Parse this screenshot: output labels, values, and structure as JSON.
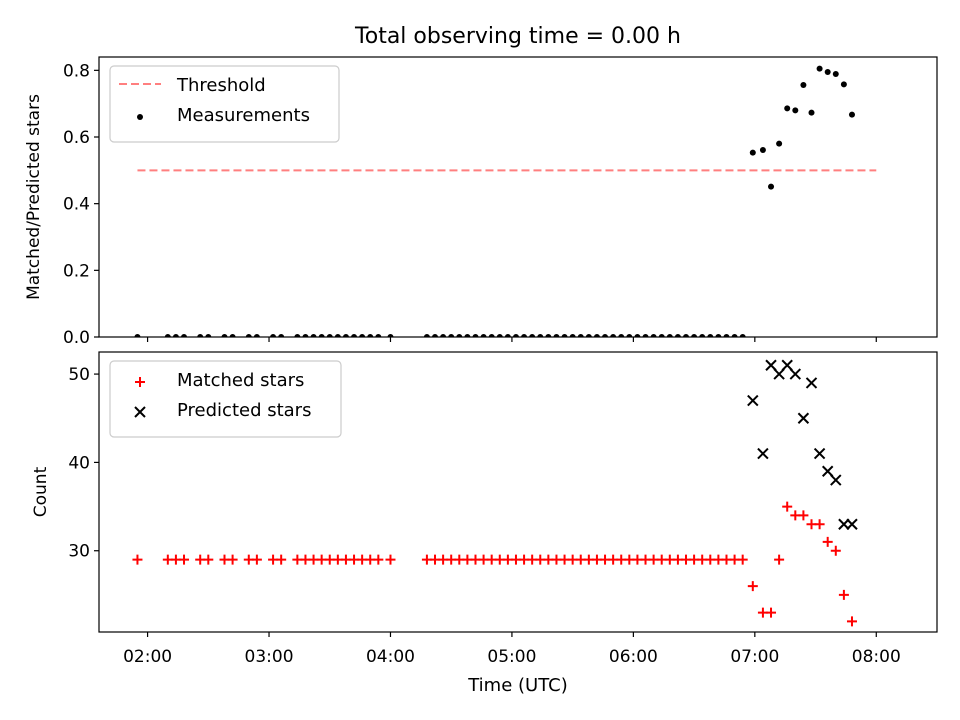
{
  "figure": {
    "title": "Total observing time = 0.00 h",
    "xlabel": "Time (UTC)",
    "xticks": [
      "02:00",
      "03:00",
      "04:00",
      "05:00",
      "06:00",
      "07:00",
      "08:00"
    ]
  },
  "chart_data": [
    {
      "type": "scatter",
      "panel": "top",
      "ylabel": "Matched/Predicted stars",
      "ylim": [
        0,
        0.84
      ],
      "yticks": [
        0.0,
        0.2,
        0.4,
        0.6,
        0.8
      ],
      "xlim": [
        "01:36",
        "08:30"
      ],
      "legend_position": "top-left",
      "threshold": {
        "name": "Threshold",
        "value": 0.5,
        "x": [
          "01:55",
          "08:00"
        ],
        "color": "#ff7f7f",
        "style": "dashed"
      },
      "series": [
        {
          "name": "Measurements",
          "color": "#000000",
          "marker": "dot",
          "points": [
            [
              "01:55",
              0
            ],
            [
              "02:10",
              0
            ],
            [
              "02:14",
              0
            ],
            [
              "02:18",
              0
            ],
            [
              "02:26",
              0
            ],
            [
              "02:30",
              0
            ],
            [
              "02:38",
              0
            ],
            [
              "02:42",
              0
            ],
            [
              "02:50",
              0
            ],
            [
              "02:54",
              0
            ],
            [
              "03:02",
              0
            ],
            [
              "03:06",
              0
            ],
            [
              "03:14",
              0
            ],
            [
              "03:18",
              0
            ],
            [
              "03:22",
              0
            ],
            [
              "03:26",
              0
            ],
            [
              "03:30",
              0
            ],
            [
              "03:34",
              0
            ],
            [
              "03:38",
              0
            ],
            [
              "03:42",
              0
            ],
            [
              "03:46",
              0
            ],
            [
              "03:50",
              0
            ],
            [
              "03:54",
              0
            ],
            [
              "04:00",
              0
            ],
            [
              "04:18",
              0
            ],
            [
              "04:22",
              0
            ],
            [
              "04:26",
              0
            ],
            [
              "04:30",
              0
            ],
            [
              "04:34",
              0
            ],
            [
              "04:38",
              0
            ],
            [
              "04:42",
              0
            ],
            [
              "04:46",
              0
            ],
            [
              "04:50",
              0
            ],
            [
              "04:54",
              0
            ],
            [
              "04:58",
              0
            ],
            [
              "05:02",
              0
            ],
            [
              "05:06",
              0
            ],
            [
              "05:10",
              0
            ],
            [
              "05:14",
              0
            ],
            [
              "05:18",
              0
            ],
            [
              "05:22",
              0
            ],
            [
              "05:26",
              0
            ],
            [
              "05:30",
              0
            ],
            [
              "05:34",
              0
            ],
            [
              "05:38",
              0
            ],
            [
              "05:42",
              0
            ],
            [
              "05:46",
              0
            ],
            [
              "05:50",
              0
            ],
            [
              "05:54",
              0
            ],
            [
              "05:58",
              0
            ],
            [
              "06:02",
              0
            ],
            [
              "06:06",
              0
            ],
            [
              "06:10",
              0
            ],
            [
              "06:14",
              0
            ],
            [
              "06:18",
              0
            ],
            [
              "06:22",
              0
            ],
            [
              "06:26",
              0
            ],
            [
              "06:30",
              0
            ],
            [
              "06:34",
              0
            ],
            [
              "06:38",
              0
            ],
            [
              "06:42",
              0
            ],
            [
              "06:46",
              0
            ],
            [
              "06:50",
              0
            ],
            [
              "06:54",
              0
            ],
            [
              "06:59",
              0.553
            ],
            [
              "07:04",
              0.561
            ],
            [
              "07:08",
              0.451
            ],
            [
              "07:12",
              0.58
            ],
            [
              "07:16",
              0.686
            ],
            [
              "07:20",
              0.68
            ],
            [
              "07:24",
              0.756
            ],
            [
              "07:28",
              0.673
            ],
            [
              "07:32",
              0.805
            ],
            [
              "07:36",
              0.795
            ],
            [
              "07:40",
              0.789
            ],
            [
              "07:44",
              0.758
            ],
            [
              "07:48",
              0.667
            ]
          ]
        }
      ]
    },
    {
      "type": "scatter",
      "panel": "bottom",
      "ylabel": "Count",
      "ylim": [
        20.8,
        52.5
      ],
      "yticks": [
        30,
        40,
        50
      ],
      "xlim": [
        "01:36",
        "08:30"
      ],
      "legend_position": "top-left",
      "series": [
        {
          "name": "Matched stars",
          "color": "#ff0000",
          "marker": "plus",
          "points": [
            [
              "01:55",
              29
            ],
            [
              "02:10",
              29
            ],
            [
              "02:14",
              29
            ],
            [
              "02:18",
              29
            ],
            [
              "02:26",
              29
            ],
            [
              "02:30",
              29
            ],
            [
              "02:38",
              29
            ],
            [
              "02:42",
              29
            ],
            [
              "02:50",
              29
            ],
            [
              "02:54",
              29
            ],
            [
              "03:02",
              29
            ],
            [
              "03:06",
              29
            ],
            [
              "03:14",
              29
            ],
            [
              "03:18",
              29
            ],
            [
              "03:22",
              29
            ],
            [
              "03:26",
              29
            ],
            [
              "03:30",
              29
            ],
            [
              "03:34",
              29
            ],
            [
              "03:38",
              29
            ],
            [
              "03:42",
              29
            ],
            [
              "03:46",
              29
            ],
            [
              "03:50",
              29
            ],
            [
              "03:54",
              29
            ],
            [
              "04:00",
              29
            ],
            [
              "04:18",
              29
            ],
            [
              "04:22",
              29
            ],
            [
              "04:26",
              29
            ],
            [
              "04:30",
              29
            ],
            [
              "04:34",
              29
            ],
            [
              "04:38",
              29
            ],
            [
              "04:42",
              29
            ],
            [
              "04:46",
              29
            ],
            [
              "04:50",
              29
            ],
            [
              "04:54",
              29
            ],
            [
              "04:58",
              29
            ],
            [
              "05:02",
              29
            ],
            [
              "05:06",
              29
            ],
            [
              "05:10",
              29
            ],
            [
              "05:14",
              29
            ],
            [
              "05:18",
              29
            ],
            [
              "05:22",
              29
            ],
            [
              "05:26",
              29
            ],
            [
              "05:30",
              29
            ],
            [
              "05:34",
              29
            ],
            [
              "05:38",
              29
            ],
            [
              "05:42",
              29
            ],
            [
              "05:46",
              29
            ],
            [
              "05:50",
              29
            ],
            [
              "05:54",
              29
            ],
            [
              "05:58",
              29
            ],
            [
              "06:02",
              29
            ],
            [
              "06:06",
              29
            ],
            [
              "06:10",
              29
            ],
            [
              "06:14",
              29
            ],
            [
              "06:18",
              29
            ],
            [
              "06:22",
              29
            ],
            [
              "06:26",
              29
            ],
            [
              "06:30",
              29
            ],
            [
              "06:34",
              29
            ],
            [
              "06:38",
              29
            ],
            [
              "06:42",
              29
            ],
            [
              "06:46",
              29
            ],
            [
              "06:50",
              29
            ],
            [
              "06:54",
              29
            ],
            [
              "06:59",
              26
            ],
            [
              "07:04",
              23
            ],
            [
              "07:08",
              23
            ],
            [
              "07:12",
              29
            ],
            [
              "07:16",
              35
            ],
            [
              "07:20",
              34
            ],
            [
              "07:24",
              34
            ],
            [
              "07:28",
              33
            ],
            [
              "07:32",
              33
            ],
            [
              "07:36",
              31
            ],
            [
              "07:40",
              30
            ],
            [
              "07:44",
              25
            ],
            [
              "07:48",
              22
            ]
          ]
        },
        {
          "name": "Predicted stars",
          "color": "#000000",
          "marker": "x",
          "points": [
            [
              "06:59",
              47
            ],
            [
              "07:04",
              41
            ],
            [
              "07:08",
              51
            ],
            [
              "07:12",
              50
            ],
            [
              "07:16",
              51
            ],
            [
              "07:20",
              50
            ],
            [
              "07:24",
              45
            ],
            [
              "07:28",
              49
            ],
            [
              "07:32",
              41
            ],
            [
              "07:36",
              39
            ],
            [
              "07:40",
              38
            ],
            [
              "07:44",
              33
            ],
            [
              "07:48",
              33
            ]
          ]
        }
      ]
    }
  ]
}
